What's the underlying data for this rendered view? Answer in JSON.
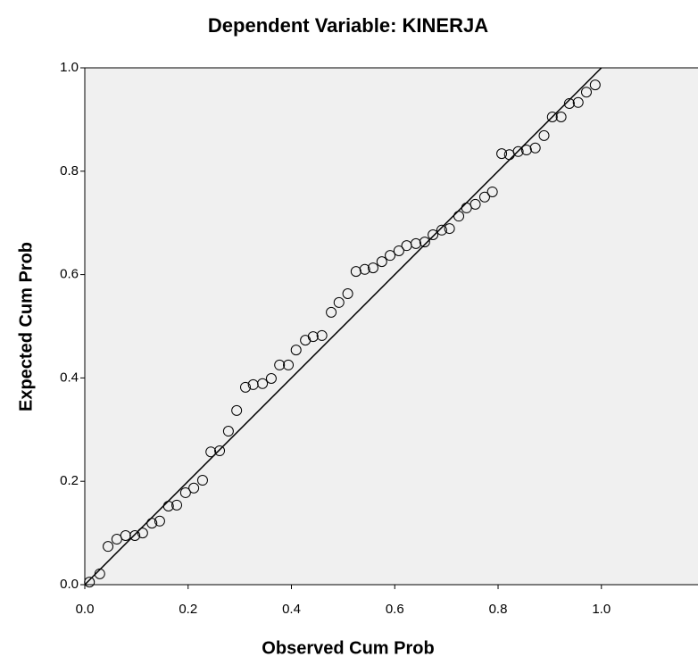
{
  "chart_data": {
    "type": "scatter",
    "title": "Dependent Variable: KINERJA",
    "x_label": "Observed Cum Prob",
    "y_label": "Expected Cum Prob",
    "color": "#000000",
    "background": "#f0f0f0",
    "xlim": [
      0,
      1.187
    ],
    "ylim": [
      0,
      1
    ],
    "xticks": [
      {
        "value": 0,
        "label": "0.0"
      },
      {
        "value": 0.2,
        "label": "0.2"
      },
      {
        "value": 0.4,
        "label": "0.4"
      },
      {
        "value": 0.6,
        "label": "0.6"
      },
      {
        "value": 0.8,
        "label": "0.8"
      },
      {
        "value": 1,
        "label": "1.0"
      }
    ],
    "yticks": [
      {
        "value": 0,
        "label": "0.0"
      },
      {
        "value": 0.2,
        "label": "0.2"
      },
      {
        "value": 0.4,
        "label": "0.4"
      },
      {
        "value": 0.6,
        "label": "0.6"
      },
      {
        "value": 0.8,
        "label": "0.8"
      },
      {
        "value": 1,
        "label": "1.0"
      }
    ],
    "reference_line": {
      "x": [
        0,
        1
      ],
      "y": [
        0,
        1
      ]
    },
    "x": [
      0.009,
      0.029,
      0.045,
      0.062,
      0.079,
      0.097,
      0.112,
      0.13,
      0.145,
      0.162,
      0.178,
      0.195,
      0.211,
      0.228,
      0.244,
      0.261,
      0.278,
      0.294,
      0.311,
      0.326,
      0.344,
      0.361,
      0.377,
      0.394,
      0.409,
      0.427,
      0.442,
      0.459,
      0.477,
      0.492,
      0.509,
      0.525,
      0.542,
      0.558,
      0.575,
      0.591,
      0.608,
      0.623,
      0.641,
      0.658,
      0.674,
      0.691,
      0.706,
      0.724,
      0.739,
      0.756,
      0.774,
      0.789,
      0.807,
      0.822,
      0.839,
      0.855,
      0.872,
      0.889,
      0.905,
      0.922,
      0.938,
      0.955,
      0.971,
      0.988
    ],
    "values": [
      0.005,
      0.021,
      0.074,
      0.088,
      0.095,
      0.095,
      0.1,
      0.119,
      0.123,
      0.152,
      0.154,
      0.178,
      0.187,
      0.202,
      0.257,
      0.259,
      0.297,
      0.337,
      0.382,
      0.387,
      0.389,
      0.399,
      0.425,
      0.425,
      0.454,
      0.473,
      0.48,
      0.482,
      0.527,
      0.546,
      0.563,
      0.606,
      0.61,
      0.613,
      0.625,
      0.637,
      0.646,
      0.656,
      0.66,
      0.663,
      0.677,
      0.686,
      0.689,
      0.713,
      0.729,
      0.736,
      0.75,
      0.76,
      0.834,
      0.832,
      0.838,
      0.841,
      0.845,
      0.869,
      0.905,
      0.905,
      0.931,
      0.933,
      0.953,
      0.967
    ]
  }
}
